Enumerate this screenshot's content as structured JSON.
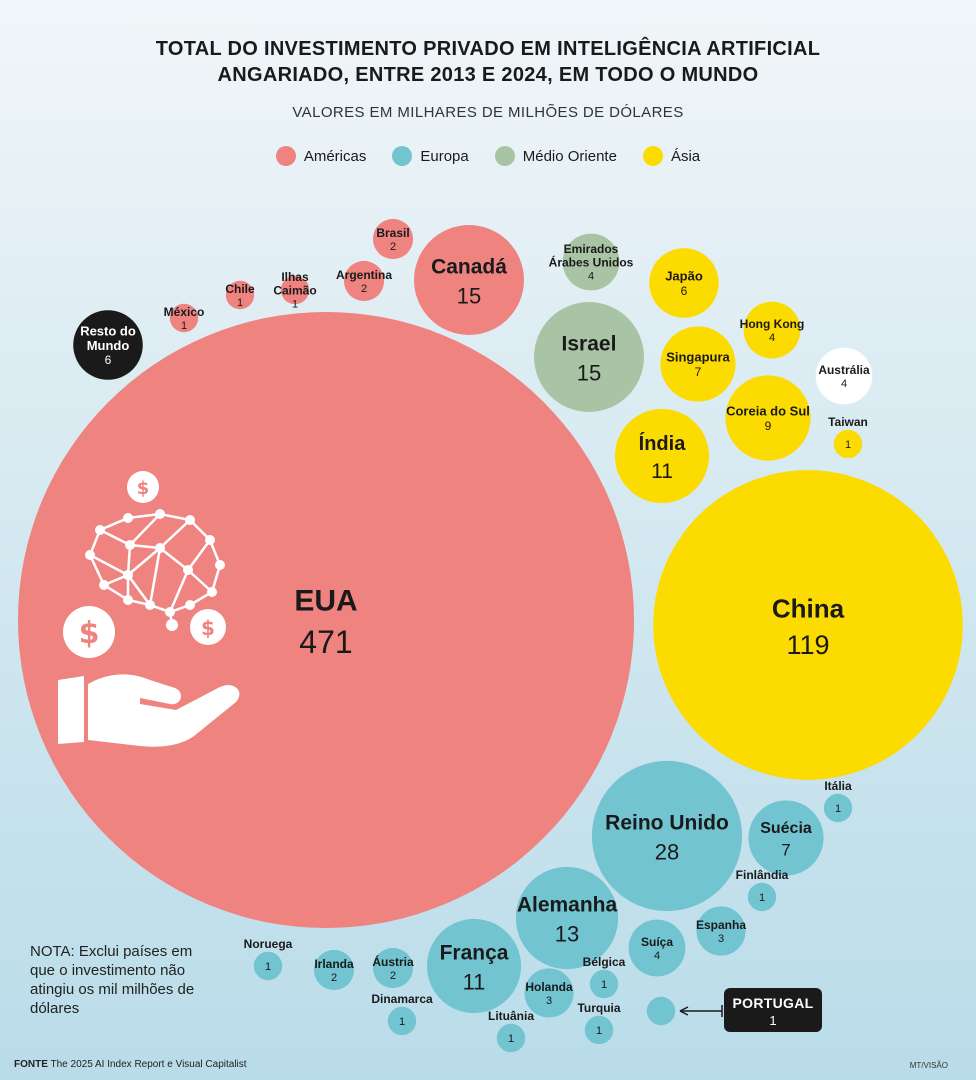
{
  "title_line1": "TOTAL DO INVESTIMENTO PRIVADO EM INTELIGÊNCIA ARTIFICIAL",
  "title_line2": "ANGARIADO, ENTRE 2013 E 2024, EM TODO O MUNDO",
  "subtitle": "VALORES EM MILHARES DE MILHÕES DE DÓLARES",
  "legend": [
    {
      "label": "Américas",
      "color": "#ee8380"
    },
    {
      "label": "Europa",
      "color": "#72c4d0"
    },
    {
      "label": "Médio Oriente",
      "color": "#a8c4a4"
    },
    {
      "label": "Ásia",
      "color": "#fcdb00"
    }
  ],
  "note": "NOTA: Exclui países em que o investimento não atingiu os mil milhões de dólares",
  "source_label": "FONTE",
  "source_text": "The 2025 AI Index Report e Visual Capitalist",
  "credit": "MT/VISÃO",
  "chart_data": {
    "type": "bubble",
    "unit": "milhares de milhões de dólares",
    "colors": {
      "Américas": "#ee8380",
      "Europa": "#72c4d0",
      "Médio Oriente": "#a8c4a4",
      "Ásia": "#fcdb00",
      "Outros": "#1a1a1a",
      "Oceânia": "#ffffff"
    },
    "points": [
      {
        "label": "EUA",
        "value": 471,
        "region": "Américas"
      },
      {
        "label": "Canadá",
        "value": 15,
        "region": "Américas"
      },
      {
        "label": "Brasil",
        "value": 2,
        "region": "Américas"
      },
      {
        "label": "Argentina",
        "value": 2,
        "region": "Américas"
      },
      {
        "label": "Ilhas Caimão",
        "value": 1,
        "region": "Américas"
      },
      {
        "label": "Chile",
        "value": 1,
        "region": "Américas"
      },
      {
        "label": "México",
        "value": 1,
        "region": "Américas"
      },
      {
        "label": "Resto do Mundo",
        "value": 6,
        "region": "Outros"
      },
      {
        "label": "Emirados Árabes Unidos",
        "value": 4,
        "region": "Médio Oriente"
      },
      {
        "label": "Israel",
        "value": 15,
        "region": "Médio Oriente"
      },
      {
        "label": "Japão",
        "value": 6,
        "region": "Ásia"
      },
      {
        "label": "Hong Kong",
        "value": 4,
        "region": "Ásia"
      },
      {
        "label": "Singapura",
        "value": 7,
        "region": "Ásia"
      },
      {
        "label": "Austrália",
        "value": 4,
        "region": "Oceânia"
      },
      {
        "label": "Coreia do Sul",
        "value": 9,
        "region": "Ásia"
      },
      {
        "label": "Índia",
        "value": 11,
        "region": "Ásia"
      },
      {
        "label": "Taiwan",
        "value": 1,
        "region": "Ásia"
      },
      {
        "label": "China",
        "value": 119,
        "region": "Ásia"
      },
      {
        "label": "Reino Unido",
        "value": 28,
        "region": "Europa"
      },
      {
        "label": "Suécia",
        "value": 7,
        "region": "Europa"
      },
      {
        "label": "Itália",
        "value": 1,
        "region": "Europa"
      },
      {
        "label": "Finlândia",
        "value": 1,
        "region": "Europa"
      },
      {
        "label": "Alemanha",
        "value": 13,
        "region": "Europa"
      },
      {
        "label": "Espanha",
        "value": 3,
        "region": "Europa"
      },
      {
        "label": "Suíça",
        "value": 4,
        "region": "Europa"
      },
      {
        "label": "França",
        "value": 11,
        "region": "Europa"
      },
      {
        "label": "Bélgica",
        "value": 1,
        "region": "Europa"
      },
      {
        "label": "Holanda",
        "value": 3,
        "region": "Europa"
      },
      {
        "label": "Áustria",
        "value": 2,
        "region": "Europa"
      },
      {
        "label": "Irlanda",
        "value": 2,
        "region": "Europa"
      },
      {
        "label": "Noruega",
        "value": 1,
        "region": "Europa"
      },
      {
        "label": "Dinamarca",
        "value": 1,
        "region": "Europa"
      },
      {
        "label": "Lituânia",
        "value": 1,
        "region": "Europa"
      },
      {
        "label": "Turquia",
        "value": 1,
        "region": "Europa"
      },
      {
        "label": "PORTUGAL",
        "value": 1,
        "region": "Europa"
      }
    ]
  }
}
